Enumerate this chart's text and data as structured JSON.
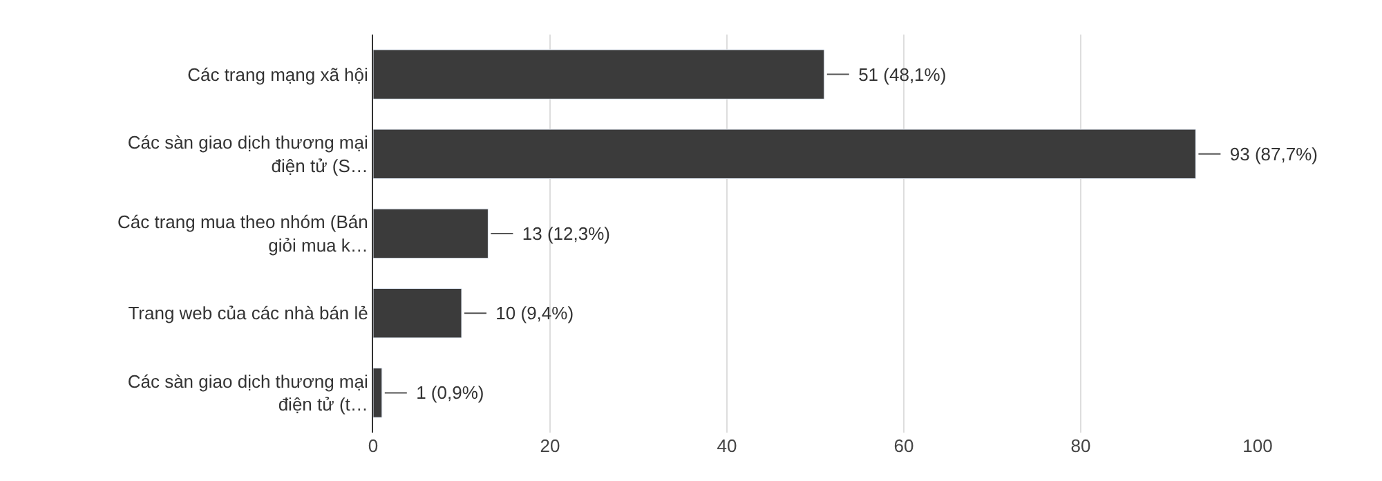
{
  "chart_data": {
    "type": "bar",
    "orientation": "horizontal",
    "categories": [
      "Các trang mạng xã hội",
      "Các sàn giao dịch thương mại\nđiện tử (S…",
      "Các trang mua theo nhóm (Bán\ngiỏi mua k…",
      "Trang web của các nhà bán lẻ",
      "Các sàn giao dịch thương mại\nđiện tử (t…"
    ],
    "values": [
      51,
      93,
      13,
      10,
      1
    ],
    "value_labels": [
      "51 (48,1%)",
      "93 (87,7%)",
      "13 (12,3%)",
      "10 (9,4%)",
      "1 (0,9%)"
    ],
    "color": "#3b3b3b",
    "xlim": [
      0,
      100
    ],
    "xticks": [
      0,
      20,
      40,
      60,
      80,
      100
    ],
    "grid": "x",
    "legend": false
  }
}
